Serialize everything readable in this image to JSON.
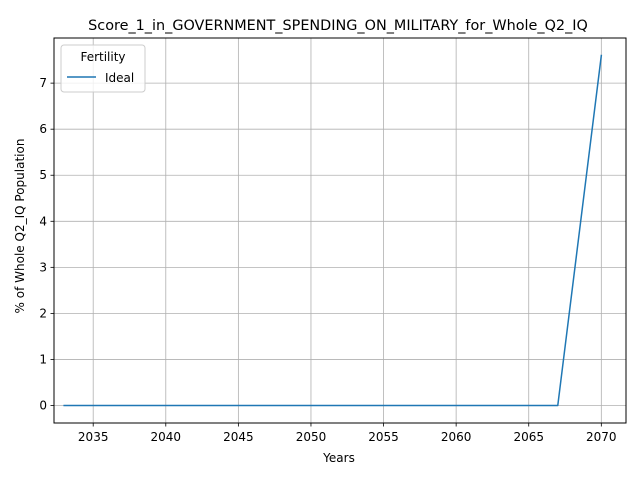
{
  "chart_data": {
    "type": "line",
    "title": "Score_1_in_GOVERNMENT_SPENDING_ON_MILITARY_for_Whole_Q2_IQ",
    "xlabel": "Years",
    "ylabel": "% of Whole Q2_IQ Population",
    "xlim": [
      2032.3,
      2071.7
    ],
    "ylim": [
      -0.38,
      7.98
    ],
    "xticks": [
      2035,
      2040,
      2045,
      2050,
      2055,
      2060,
      2065,
      2070
    ],
    "yticks": [
      0,
      1,
      2,
      3,
      4,
      5,
      6,
      7
    ],
    "grid": true,
    "legend": {
      "title": "Fertility",
      "placement": "top-left"
    },
    "series": [
      {
        "name": "Ideal",
        "color": "#1f77b4",
        "x": [
          2033,
          2034,
          2035,
          2036,
          2037,
          2038,
          2039,
          2040,
          2041,
          2042,
          2043,
          2044,
          2045,
          2046,
          2047,
          2048,
          2049,
          2050,
          2051,
          2052,
          2053,
          2054,
          2055,
          2056,
          2057,
          2058,
          2059,
          2060,
          2061,
          2062,
          2063,
          2064,
          2065,
          2066,
          2067,
          2070
        ],
        "values": [
          0,
          0,
          0,
          0,
          0,
          0,
          0,
          0,
          0,
          0,
          0,
          0,
          0,
          0,
          0,
          0,
          0,
          0,
          0,
          0,
          0,
          0,
          0,
          0,
          0,
          0,
          0,
          0,
          0,
          0,
          0,
          0,
          0,
          0,
          0,
          7.6
        ]
      }
    ]
  }
}
